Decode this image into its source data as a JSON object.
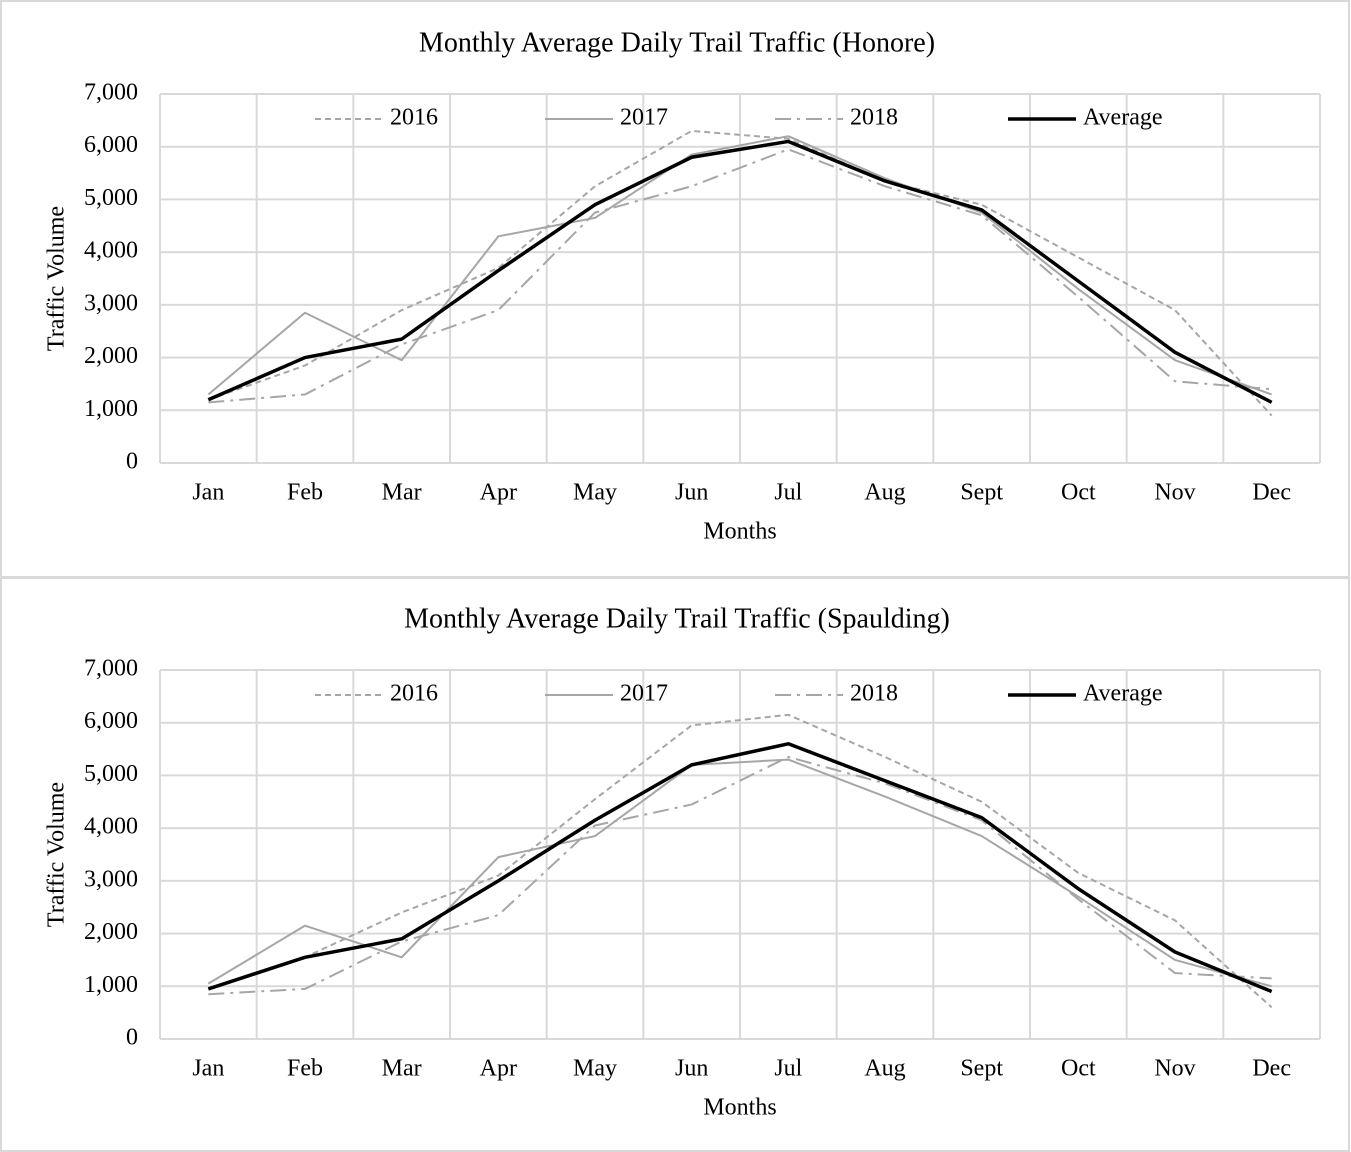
{
  "chart_data": [
    {
      "type": "line",
      "title": "Monthly Average Daily Trail Traffic (Honore)",
      "x_label": "Months",
      "y_label": "Traffic  Volume",
      "categories": [
        "Jan",
        "Feb",
        "Mar",
        "Apr",
        "May",
        "Jun",
        "Jul",
        "Aug",
        "Sept",
        "Oct",
        "Nov",
        "Dec"
      ],
      "ylim": [
        0,
        7000
      ],
      "yticks": [
        0,
        {
          "value": 1000,
          "label": "1,000"
        },
        {
          "value": 2000,
          "label": "2,000"
        },
        {
          "value": 3000,
          "label": "3,000"
        },
        {
          "value": 4000,
          "label": "4,000"
        },
        {
          "value": 5000,
          "label": "5,000"
        },
        {
          "value": 6000,
          "label": "6,000"
        },
        {
          "value": 7000,
          "label": "7,000"
        }
      ],
      "grid": true,
      "legend": "top",
      "series": [
        {
          "name": "2016",
          "color": "#a6a6a6",
          "line_style": "dashed",
          "values": [
            1200,
            1850,
            2900,
            3700,
            5250,
            6300,
            6150,
            5350,
            4900,
            3900,
            2900,
            900
          ]
        },
        {
          "name": "2017",
          "color": "#a6a6a6",
          "line_style": "solid",
          "values": [
            1300,
            2850,
            1950,
            4300,
            4650,
            5850,
            6200,
            5400,
            4750,
            3300,
            1950,
            1300
          ]
        },
        {
          "name": "2018",
          "color": "#a6a6a6",
          "line_style": "dash-dot",
          "values": [
            1150,
            1300,
            2250,
            2900,
            4750,
            5250,
            5950,
            5250,
            4700,
            3150,
            1550,
            1400
          ]
        },
        {
          "name": "Average",
          "color": "#000000",
          "line_style": "solid-bold",
          "values": [
            1200,
            2000,
            2350,
            3650,
            4900,
            5800,
            6100,
            5350,
            4800,
            3450,
            2100,
            1150
          ]
        }
      ]
    },
    {
      "type": "line",
      "title": "Monthly Average Daily Trail Traffic (Spaulding)",
      "x_label": "Months",
      "y_label": "Traffic  Volume",
      "categories": [
        "Jan",
        "Feb",
        "Mar",
        "Apr",
        "May",
        "Jun",
        "Jul",
        "Aug",
        "Sept",
        "Oct",
        "Nov",
        "Dec"
      ],
      "ylim": [
        0,
        7000
      ],
      "yticks": [
        0,
        {
          "value": 1000,
          "label": "1,000"
        },
        {
          "value": 2000,
          "label": "2,000"
        },
        {
          "value": 3000,
          "label": "3,000"
        },
        {
          "value": 4000,
          "label": "4,000"
        },
        {
          "value": 5000,
          "label": "5,000"
        },
        {
          "value": 6000,
          "label": "6,000"
        },
        {
          "value": 7000,
          "label": "7,000"
        }
      ],
      "grid": true,
      "legend": "top",
      "series": [
        {
          "name": "2016",
          "color": "#a6a6a6",
          "line_style": "dashed",
          "values": [
            950,
            1550,
            2400,
            3100,
            4550,
            5950,
            6150,
            5350,
            4500,
            3150,
            2250,
            600
          ]
        },
        {
          "name": "2017",
          "color": "#a6a6a6",
          "line_style": "solid",
          "values": [
            1050,
            2150,
            1550,
            3450,
            3850,
            5200,
            5300,
            4600,
            3850,
            2700,
            1500,
            1000
          ]
        },
        {
          "name": "2018",
          "color": "#a6a6a6",
          "line_style": "dash-dot",
          "values": [
            850,
            950,
            1850,
            2350,
            4050,
            4450,
            5350,
            4850,
            4150,
            2650,
            1250,
            1150
          ]
        },
        {
          "name": "Average",
          "color": "#000000",
          "line_style": "solid-bold",
          "values": [
            950,
            1550,
            1900,
            3000,
            4150,
            5200,
            5600,
            4900,
            4200,
            2850,
            1650,
            900
          ]
        }
      ]
    }
  ]
}
